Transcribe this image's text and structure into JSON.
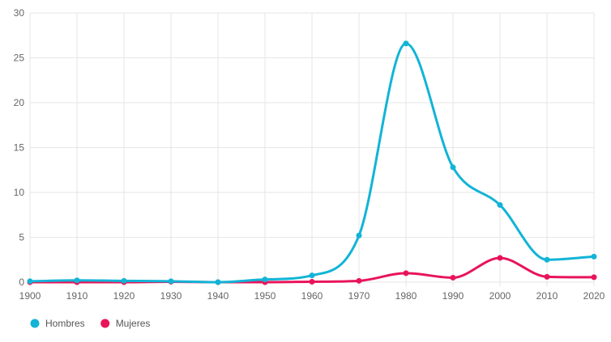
{
  "chart_data": {
    "type": "line",
    "x": [
      1900,
      1910,
      1920,
      1930,
      1940,
      1950,
      1960,
      1970,
      1980,
      1990,
      2000,
      2010,
      2020
    ],
    "x_tick_labels": [
      "1900",
      "1910",
      "1920",
      "1930",
      "1940",
      "1950",
      "1960",
      "1970",
      "1980",
      "1990",
      "2000",
      "2010",
      "2020"
    ],
    "y_tick_labels": [
      "0",
      "5",
      "10",
      "15",
      "20",
      "25",
      "30"
    ],
    "ylim": [
      0,
      30
    ],
    "xlim": [
      1900,
      2020
    ],
    "grid": true,
    "legend_position": "bottom-left",
    "series": [
      {
        "name": "Hombres",
        "color": "#12b4d6",
        "values": [
          0.1,
          0.2,
          0.15,
          0.1,
          0.0,
          0.3,
          0.75,
          5.2,
          26.6,
          12.8,
          8.6,
          2.5,
          2.85
        ]
      },
      {
        "name": "Mujeres",
        "color": "#e8145a",
        "values": [
          0.0,
          0.0,
          0.0,
          0.05,
          0.0,
          0.0,
          0.05,
          0.15,
          1.0,
          0.5,
          2.7,
          0.6,
          0.55
        ]
      }
    ]
  }
}
